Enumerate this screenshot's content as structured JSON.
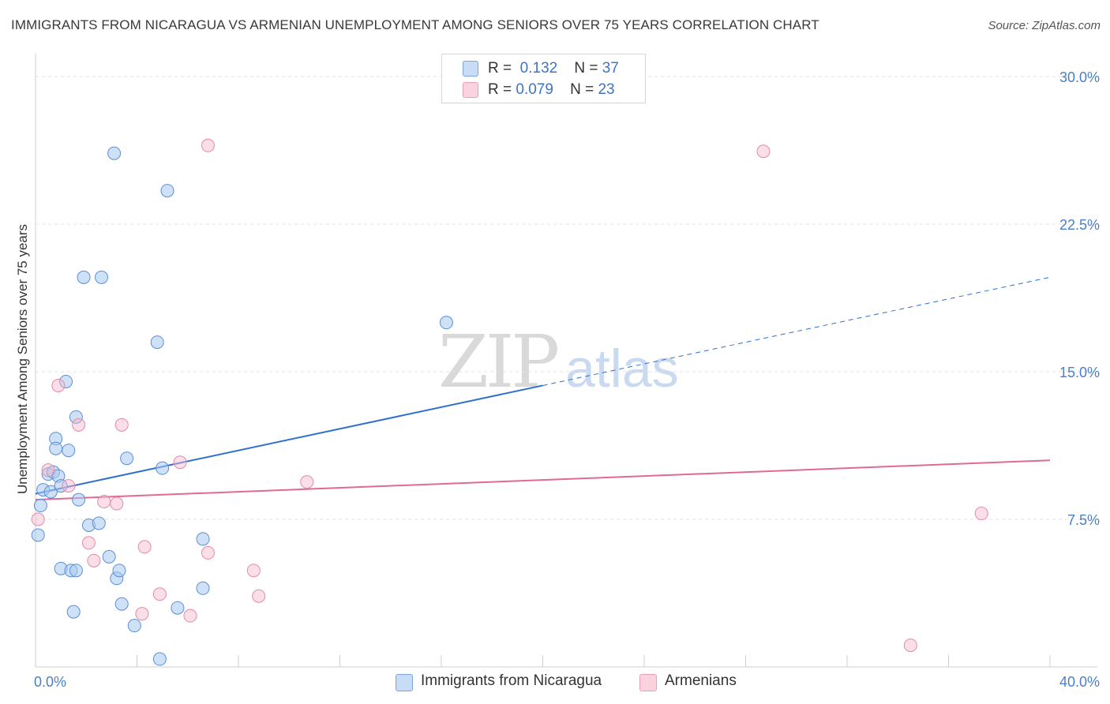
{
  "title": "IMMIGRANTS FROM NICARAGUA VS ARMENIAN UNEMPLOYMENT AMONG SENIORS OVER 75 YEARS CORRELATION CHART",
  "source": "Source: ZipAtlas.com",
  "watermark": {
    "zip": "ZIP",
    "atlas": "atlas"
  },
  "legend": {
    "series1": {
      "r_label": "R =",
      "r_value": "0.132",
      "n_label": "N =",
      "n_value": "37"
    },
    "series2": {
      "r_label": "R =",
      "r_value": "0.079",
      "n_label": "N =",
      "n_value": "23"
    }
  },
  "bottom_legend": {
    "series1": "Immigrants from Nicaragua",
    "series2": "Armenians"
  },
  "chart_data": {
    "type": "scatter",
    "ylabel": "Unemployment Among Seniors over 75 years",
    "xlim": [
      0,
      40
    ],
    "ylim": [
      0,
      30
    ],
    "y_ticks": [
      {
        "v": 7.5,
        "label": "7.5%"
      },
      {
        "v": 15.0,
        "label": "15.0%"
      },
      {
        "v": 22.5,
        "label": "22.5%"
      },
      {
        "v": 30.0,
        "label": "30.0%"
      }
    ],
    "x_tick_labels": [
      {
        "v": 0,
        "label": "0.0%"
      },
      {
        "v": 40,
        "label": "40.0%"
      }
    ],
    "colors": {
      "series1": "#a8c8f0",
      "series1_line": "#2f70cc",
      "series2": "#f5b8cb",
      "series2_line": "#e06a93"
    },
    "series": [
      {
        "name": "Immigrants from Nicaragua",
        "points": [
          [
            0.1,
            6.7
          ],
          [
            0.2,
            8.2
          ],
          [
            0.3,
            9.0
          ],
          [
            0.5,
            9.8
          ],
          [
            0.6,
            8.9
          ],
          [
            0.7,
            9.9
          ],
          [
            0.8,
            11.6
          ],
          [
            0.8,
            11.1
          ],
          [
            0.9,
            9.7
          ],
          [
            1.0,
            9.2
          ],
          [
            1.2,
            14.5
          ],
          [
            1.3,
            11.0
          ],
          [
            1.5,
            2.8
          ],
          [
            1.6,
            12.7
          ],
          [
            1.7,
            8.5
          ],
          [
            1.9,
            19.8
          ],
          [
            2.1,
            7.2
          ],
          [
            1.0,
            5.0
          ],
          [
            1.4,
            4.9
          ],
          [
            1.6,
            4.9
          ],
          [
            2.5,
            7.3
          ],
          [
            2.9,
            5.6
          ],
          [
            3.1,
            26.1
          ],
          [
            3.2,
            4.5
          ],
          [
            3.3,
            4.9
          ],
          [
            3.6,
            10.6
          ],
          [
            3.4,
            3.2
          ],
          [
            3.9,
            2.1
          ],
          [
            4.8,
            16.5
          ],
          [
            4.9,
            0.4
          ],
          [
            5.0,
            10.1
          ],
          [
            5.2,
            24.2
          ],
          [
            5.6,
            3.0
          ],
          [
            6.6,
            6.5
          ],
          [
            6.6,
            4.0
          ],
          [
            16.2,
            17.5
          ],
          [
            2.6,
            19.8
          ]
        ],
        "trend": {
          "x0": 0,
          "y0": 8.8,
          "x1": 40,
          "y1": 19.8,
          "solid_until_x": 20
        }
      },
      {
        "name": "Armenians",
        "points": [
          [
            0.1,
            7.5
          ],
          [
            0.5,
            10.0
          ],
          [
            0.9,
            14.3
          ],
          [
            1.3,
            9.2
          ],
          [
            1.7,
            12.3
          ],
          [
            2.1,
            6.3
          ],
          [
            2.3,
            5.4
          ],
          [
            2.7,
            8.4
          ],
          [
            3.2,
            8.3
          ],
          [
            3.4,
            12.3
          ],
          [
            4.2,
            2.7
          ],
          [
            4.3,
            6.1
          ],
          [
            4.9,
            3.7
          ],
          [
            5.7,
            10.4
          ],
          [
            6.1,
            2.6
          ],
          [
            6.8,
            5.8
          ],
          [
            6.8,
            26.5
          ],
          [
            8.6,
            4.9
          ],
          [
            8.8,
            3.6
          ],
          [
            10.7,
            9.4
          ],
          [
            28.7,
            26.2
          ],
          [
            34.5,
            1.1
          ],
          [
            37.3,
            7.8
          ]
        ],
        "trend": {
          "x0": 0,
          "y0": 8.5,
          "x1": 40,
          "y1": 10.5
        }
      }
    ]
  }
}
